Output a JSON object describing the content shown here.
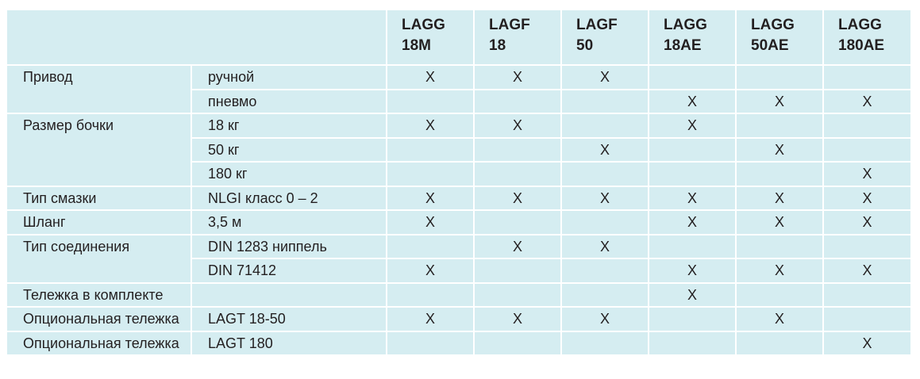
{
  "columns": [
    "LAGG\n18M",
    "LAGF\n18",
    "LAGF\n50",
    "LAGG\n18AE",
    "LAGG\n50AE",
    "LAGG\n180AE"
  ],
  "column_lines": [
    [
      "LAGG",
      "18M"
    ],
    [
      "LAGF",
      "18"
    ],
    [
      "LAGF",
      "50"
    ],
    [
      "LAGG",
      "18AE"
    ],
    [
      "LAGG",
      "50AE"
    ],
    [
      "LAGG",
      "180AE"
    ]
  ],
  "rows": [
    {
      "group": "Привод",
      "option": "ручной",
      "marks": [
        "X",
        "X",
        "X",
        "",
        "",
        ""
      ]
    },
    {
      "group": "",
      "option": "пневмо",
      "marks": [
        "",
        "",
        "",
        "X",
        "X",
        "X"
      ]
    },
    {
      "group": "Размер бочки",
      "option": "18 кг",
      "marks": [
        "X",
        "X",
        "",
        "X",
        "",
        ""
      ]
    },
    {
      "group": "",
      "option": "50 кг",
      "marks": [
        "",
        "",
        "X",
        "",
        "X",
        ""
      ]
    },
    {
      "group": "",
      "option": "180 кг",
      "marks": [
        "",
        "",
        "",
        "",
        "",
        "X"
      ]
    },
    {
      "group": "Тип смазки",
      "option": "NLGI класс 0 – 2",
      "marks": [
        "X",
        "X",
        "X",
        "X",
        "X",
        "X"
      ]
    },
    {
      "group": "Шланг",
      "option": "3,5 м",
      "marks": [
        "X",
        "",
        "",
        "X",
        "X",
        "X"
      ]
    },
    {
      "group": "Тип соединения",
      "option": "DIN 1283 ниппель",
      "marks": [
        "",
        "X",
        "X",
        "",
        "",
        ""
      ]
    },
    {
      "group": "",
      "option": "DIN 71412",
      "marks": [
        "X",
        "",
        "",
        "X",
        "X",
        "X"
      ]
    },
    {
      "group": "Тележка в комплекте",
      "option": "",
      "marks": [
        "",
        "",
        "",
        "X",
        "",
        ""
      ]
    },
    {
      "group": "Опциональная тележка",
      "option": "LAGT 18-50",
      "marks": [
        "X",
        "X",
        "X",
        "",
        "X",
        ""
      ]
    },
    {
      "group": "Опциональная тележка",
      "option": "LAGT 180",
      "marks": [
        "",
        "",
        "",
        "",
        "",
        "X"
      ]
    }
  ],
  "colors": {
    "cell_bg": "#d5edf1",
    "grid": "#ffffff",
    "text": "#231f20"
  }
}
